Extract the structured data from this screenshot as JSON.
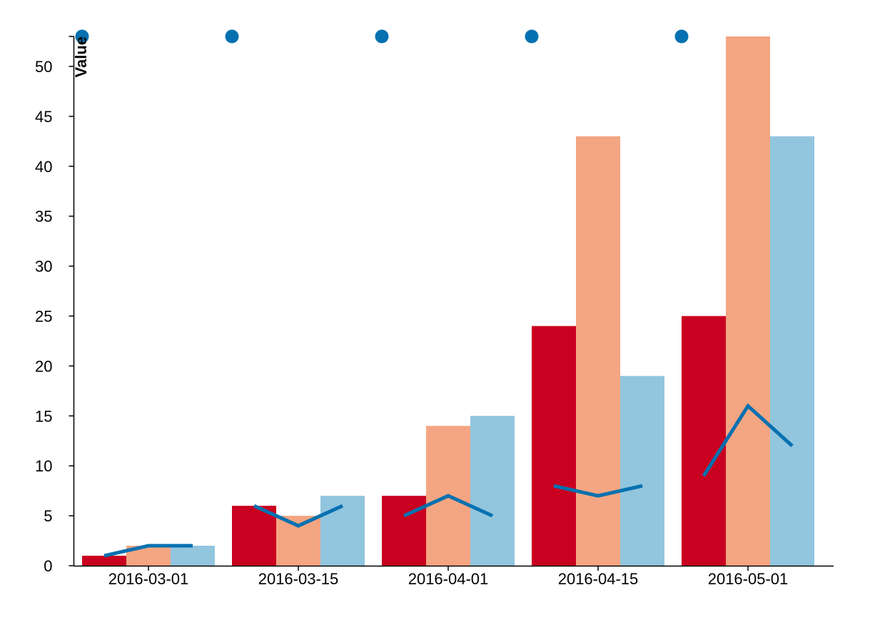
{
  "chart_data": {
    "type": "bar",
    "x": [
      "2016-03-01",
      "2016-03-15",
      "2016-04-01",
      "2016-04-15",
      "2016-05-01"
    ],
    "xlabel": "",
    "ylabel": "Value",
    "ylim": [
      0,
      53
    ],
    "yticks": [
      0,
      5,
      10,
      15,
      20,
      25,
      30,
      35,
      40,
      45,
      50
    ],
    "grid": false,
    "legend": "none",
    "bar_series": [
      {
        "color": "#ca0020",
        "values": [
          1,
          6,
          7,
          24,
          25
        ]
      },
      {
        "color": "#f4a582",
        "values": [
          2,
          5,
          14,
          43,
          53
        ]
      },
      {
        "color": "#92c5de",
        "values": [
          2,
          7,
          15,
          19,
          43
        ]
      }
    ],
    "line_series": {
      "color": "#0571b0",
      "groups": [
        [
          1,
          2,
          2
        ],
        [
          6,
          4,
          6
        ],
        [
          5,
          7,
          5
        ],
        [
          8,
          7,
          8
        ],
        [
          9,
          16,
          12
        ]
      ]
    },
    "top_markers": {
      "color": "#0571b0",
      "x": [
        "2016-03-01",
        "2016-03-15",
        "2016-04-01",
        "2016-04-15",
        "2016-05-01"
      ]
    }
  }
}
